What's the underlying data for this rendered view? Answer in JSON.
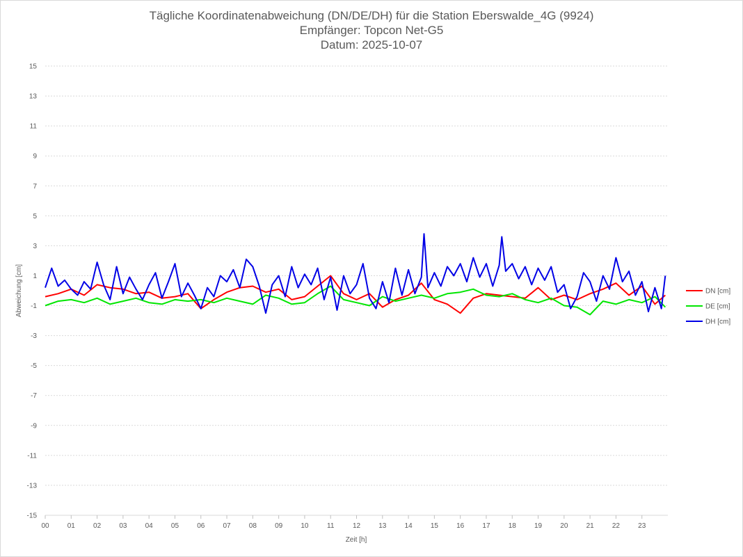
{
  "chart_data": {
    "type": "line",
    "title": "Tägliche Koordinatenabweichung (DN/DE/DH) für die Station Eberswalde_4G (9924)",
    "subtitle": "Empfänger: Topcon Net-G5",
    "date_line": "Datum: 2025-10-07",
    "xlabel": "Zeit [h]",
    "ylabel": "Abweichung [cm]",
    "xlim": [
      0,
      24
    ],
    "ylim": [
      -15,
      15
    ],
    "x_ticks": [
      "00",
      "01",
      "02",
      "03",
      "04",
      "05",
      "06",
      "07",
      "08",
      "09",
      "10",
      "11",
      "12",
      "13",
      "14",
      "15",
      "16",
      "17",
      "18",
      "19",
      "20",
      "21",
      "22",
      "23"
    ],
    "y_ticks": [
      15,
      13,
      11,
      9,
      7,
      5,
      3,
      1,
      -1,
      -3,
      -5,
      -7,
      -9,
      -11,
      -13,
      -15
    ],
    "legend_position": "right",
    "series": [
      {
        "name": "DN [cm]",
        "color": "#ff0000",
        "x": [
          0,
          0.5,
          1,
          1.5,
          2,
          2.5,
          3,
          3.5,
          4,
          4.5,
          5,
          5.5,
          6,
          6.5,
          7,
          7.5,
          8,
          8.5,
          9,
          9.5,
          10,
          10.5,
          11,
          11.5,
          12,
          12.5,
          13,
          13.5,
          14,
          14.5,
          15,
          15.5,
          16,
          16.5,
          17,
          17.5,
          18,
          18.5,
          19,
          19.5,
          20,
          20.5,
          21,
          21.5,
          22,
          22.5,
          23,
          23.5,
          23.9
        ],
        "values": [
          -0.4,
          -0.2,
          0.1,
          -0.3,
          0.4,
          0.2,
          0.1,
          -0.2,
          -0.1,
          -0.5,
          -0.4,
          -0.2,
          -1.2,
          -0.6,
          -0.1,
          0.2,
          0.3,
          -0.1,
          0.1,
          -0.6,
          -0.4,
          0.3,
          1.0,
          -0.2,
          -0.6,
          -0.2,
          -1.1,
          -0.6,
          -0.3,
          0.5,
          -0.6,
          -0.9,
          -1.5,
          -0.5,
          -0.2,
          -0.3,
          -0.4,
          -0.5,
          0.2,
          -0.6,
          -0.3,
          -0.6,
          -0.2,
          0.1,
          0.5,
          -0.3,
          0.3,
          -0.9,
          -0.3
        ]
      },
      {
        "name": "DE [cm]",
        "color": "#00e600",
        "x": [
          0,
          0.5,
          1,
          1.5,
          2,
          2.5,
          3,
          3.5,
          4,
          4.5,
          5,
          5.5,
          6,
          6.5,
          7,
          7.5,
          8,
          8.5,
          9,
          9.5,
          10,
          10.5,
          11,
          11.5,
          12,
          12.5,
          13,
          13.5,
          14,
          14.5,
          15,
          15.5,
          16,
          16.5,
          17,
          17.5,
          18,
          18.5,
          19,
          19.5,
          20,
          20.5,
          21,
          21.5,
          22,
          22.5,
          23,
          23.5,
          23.9
        ],
        "values": [
          -1.0,
          -0.7,
          -0.6,
          -0.8,
          -0.5,
          -0.9,
          -0.7,
          -0.5,
          -0.8,
          -0.9,
          -0.6,
          -0.7,
          -0.6,
          -0.8,
          -0.5,
          -0.7,
          -0.9,
          -0.3,
          -0.5,
          -0.9,
          -0.8,
          -0.2,
          0.3,
          -0.6,
          -0.8,
          -1.0,
          -0.4,
          -0.7,
          -0.5,
          -0.3,
          -0.5,
          -0.2,
          -0.1,
          0.1,
          -0.3,
          -0.4,
          -0.2,
          -0.6,
          -0.8,
          -0.5,
          -1.0,
          -1.1,
          -1.6,
          -0.7,
          -0.9,
          -0.6,
          -0.8,
          -0.4,
          -1.1
        ]
      },
      {
        "name": "DH [cm]",
        "color": "#0000e6",
        "x": [
          0,
          0.25,
          0.5,
          0.75,
          1,
          1.25,
          1.5,
          1.75,
          2,
          2.25,
          2.5,
          2.75,
          3,
          3.25,
          3.5,
          3.75,
          4,
          4.25,
          4.5,
          4.75,
          5,
          5.25,
          5.5,
          5.75,
          6,
          6.25,
          6.5,
          6.75,
          7,
          7.25,
          7.5,
          7.75,
          8,
          8.25,
          8.5,
          8.75,
          9,
          9.25,
          9.5,
          9.75,
          10,
          10.25,
          10.5,
          10.75,
          11,
          11.25,
          11.5,
          11.75,
          12,
          12.25,
          12.5,
          12.75,
          13,
          13.25,
          13.5,
          13.75,
          14,
          14.25,
          14.5,
          14.6,
          14.75,
          15,
          15.25,
          15.5,
          15.75,
          16,
          16.25,
          16.5,
          16.75,
          17,
          17.25,
          17.5,
          17.6,
          17.75,
          18,
          18.25,
          18.5,
          18.75,
          19,
          19.25,
          19.5,
          19.75,
          20,
          20.25,
          20.5,
          20.75,
          21,
          21.25,
          21.5,
          21.75,
          22,
          22.25,
          22.5,
          22.75,
          23,
          23.25,
          23.5,
          23.75,
          23.9
        ],
        "values": [
          0.2,
          1.5,
          0.3,
          0.7,
          0.1,
          -0.3,
          0.6,
          0.1,
          1.9,
          0.4,
          -0.6,
          1.6,
          -0.2,
          0.9,
          0.1,
          -0.6,
          0.4,
          1.2,
          -0.5,
          0.6,
          1.8,
          -0.4,
          0.5,
          -0.3,
          -1.2,
          0.2,
          -0.4,
          1.0,
          0.6,
          1.4,
          0.2,
          2.1,
          1.6,
          0.3,
          -1.5,
          0.4,
          1.0,
          -0.4,
          1.6,
          0.2,
          1.1,
          0.4,
          1.5,
          -0.6,
          0.9,
          -1.3,
          1.0,
          -0.2,
          0.4,
          1.8,
          -0.5,
          -1.2,
          0.6,
          -0.8,
          1.5,
          -0.3,
          1.4,
          -0.2,
          0.9,
          3.8,
          0.2,
          1.2,
          0.3,
          1.6,
          1.0,
          1.8,
          0.6,
          2.2,
          0.9,
          1.8,
          0.3,
          1.7,
          3.6,
          1.3,
          1.8,
          0.8,
          1.6,
          0.4,
          1.5,
          0.7,
          1.6,
          -0.1,
          0.4,
          -1.2,
          -0.4,
          1.2,
          0.6,
          -0.7,
          1.0,
          0.1,
          2.2,
          0.6,
          1.3,
          -0.3,
          0.6,
          -1.4,
          0.2,
          -1.2,
          1.0
        ]
      }
    ]
  }
}
